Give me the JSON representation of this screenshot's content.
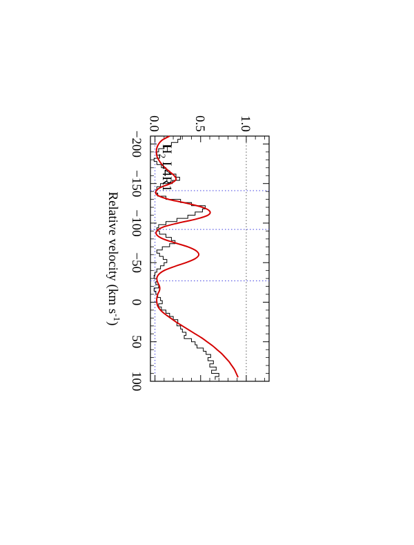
{
  "chart_data": {
    "type": "line",
    "orientation": "rotated-90-clockwise",
    "annotation": {
      "species": "H",
      "sub": "2",
      "rest": " L4R1"
    },
    "xlabel": {
      "main": "Relative velocity (km s",
      "sup": "-1",
      "close": ")"
    },
    "ylabel": "",
    "xlim": [
      -210,
      100
    ],
    "ylim": [
      -0.05,
      1.25
    ],
    "x_ticks": [
      -200,
      -150,
      -100,
      -50,
      0,
      50,
      100
    ],
    "x_tick_labels": [
      "−200",
      "−150",
      "−100",
      "−50",
      "0",
      "50",
      "100"
    ],
    "y_ticks": [
      0.0,
      0.5,
      1.0
    ],
    "y_tick_labels": [
      "0.0",
      "0.5",
      "1.0"
    ],
    "reference_lines": {
      "continuum": 1.0,
      "zero": 0.0
    },
    "component_velocities": [
      -141,
      -92,
      -27
    ],
    "colors": {
      "data": "#000000",
      "model": "#d40000",
      "reference": "#3a3adf",
      "guide": "#555555"
    },
    "series": [
      {
        "style": "step",
        "x": [
          -210,
          -206,
          -202,
          -198,
          -194,
          -190,
          -186,
          -182,
          -178,
          -174,
          -170,
          -166,
          -162,
          -158,
          -154,
          -150,
          -146,
          -142,
          -138,
          -134,
          -130,
          -126,
          -122,
          -118,
          -114,
          -110,
          -106,
          -102,
          -98,
          -94,
          -90,
          -86,
          -82,
          -78,
          -74,
          -70,
          -66,
          -62,
          -58,
          -54,
          -50,
          -46,
          -42,
          -38,
          -34,
          -30,
          -26,
          -22,
          -18,
          -14,
          -10,
          -6,
          -2,
          2,
          6,
          10,
          14,
          18,
          22,
          26,
          30,
          34,
          38,
          42,
          46,
          50,
          54,
          58,
          62,
          66,
          70,
          74,
          78,
          82,
          86,
          90,
          94
        ],
        "y": [
          0.28,
          0.25,
          0.18,
          0.1,
          0.04,
          0.02,
          0.05,
          -0.01,
          0.02,
          0.07,
          0.12,
          0.16,
          0.23,
          0.27,
          0.19,
          0.06,
          0.02,
          0.01,
          0.03,
          0.12,
          0.28,
          0.4,
          0.55,
          0.52,
          0.44,
          0.36,
          0.24,
          0.12,
          0.04,
          0.02,
          0.05,
          0.12,
          0.18,
          0.22,
          0.16,
          0.08,
          0.02,
          0.05,
          0.09,
          0.13,
          0.1,
          0.06,
          0.02,
          0.0,
          -0.01,
          0.02,
          0.01,
          0.04,
          -0.01,
          0.01,
          0.03,
          0.06,
          0.08,
          0.04,
          0.07,
          0.12,
          0.16,
          0.2,
          0.25,
          0.24,
          0.28,
          0.3,
          0.34,
          0.32,
          0.4,
          0.44,
          0.46,
          0.53,
          0.56,
          0.61,
          0.58,
          0.64,
          0.6,
          0.67,
          0.62,
          0.7,
          0.66
        ]
      },
      {
        "style": "smooth",
        "x": [
          -210,
          -205,
          -200,
          -195,
          -190,
          -185,
          -180,
          -175,
          -170,
          -165,
          -160,
          -155,
          -150,
          -145,
          -140,
          -135,
          -130,
          -125,
          -120,
          -115,
          -110,
          -105,
          -100,
          -95,
          -90,
          -85,
          -80,
          -75,
          -70,
          -65,
          -60,
          -55,
          -50,
          -45,
          -40,
          -35,
          -30,
          -25,
          -20,
          -15,
          -10,
          -5,
          0,
          5,
          10,
          15,
          20,
          25,
          30,
          35,
          40,
          45,
          50,
          55,
          60,
          65,
          70,
          75,
          80,
          85,
          90,
          95
        ],
        "y": [
          0.16,
          0.08,
          0.04,
          0.02,
          0.015,
          0.02,
          0.04,
          0.07,
          0.11,
          0.16,
          0.21,
          0.23,
          0.17,
          0.06,
          0.01,
          0.03,
          0.15,
          0.35,
          0.52,
          0.6,
          0.58,
          0.45,
          0.25,
          0.09,
          0.02,
          0.02,
          0.09,
          0.22,
          0.36,
          0.45,
          0.48,
          0.44,
          0.34,
          0.21,
          0.1,
          0.04,
          0.02,
          0.03,
          0.05,
          0.05,
          0.03,
          0.02,
          0.02,
          0.03,
          0.06,
          0.11,
          0.17,
          0.23,
          0.3,
          0.37,
          0.44,
          0.51,
          0.57,
          0.63,
          0.68,
          0.73,
          0.77,
          0.81,
          0.84,
          0.87,
          0.89,
          0.91
        ]
      }
    ]
  }
}
